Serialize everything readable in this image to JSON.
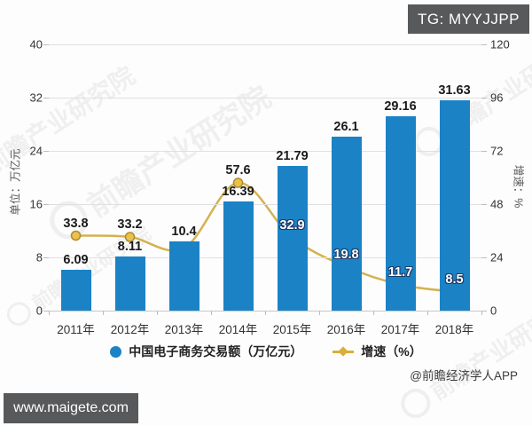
{
  "badges": {
    "tg": "TG: MYYJJPP",
    "site": "www.maigete.com"
  },
  "attribution": "@前瞻经济学人APP",
  "watermark": {
    "text": "前瞻产业研究院"
  },
  "chart_data": {
    "type": "bar",
    "subtype": "bar+line dual axis",
    "categories": [
      "2011年",
      "2012年",
      "2013年",
      "2014年",
      "2015年",
      "2016年",
      "2017年",
      "2018年"
    ],
    "series": [
      {
        "name": "中国电子商务交易额（万亿元）",
        "type": "bar",
        "axis": "left",
        "color": "#1b82c5",
        "values": [
          6.09,
          8.11,
          10.4,
          16.39,
          21.79,
          26.1,
          29.16,
          31.63
        ],
        "labels": [
          "6.09",
          "8.11",
          "10.4",
          "16.39",
          "21.79",
          "26.1",
          "29.16",
          "31.63"
        ]
      },
      {
        "name": "增速（%）",
        "type": "line",
        "axis": "right",
        "color": "#d2ae46",
        "marker_fill": "#ecc24b",
        "marker_stroke": "#ad8b32",
        "values": [
          33.8,
          33.2,
          28.2,
          57.6,
          32.9,
          19.8,
          11.7,
          8.5
        ],
        "labels": [
          "33.8",
          "33.2",
          "",
          "57.6",
          "32.9",
          "19.8",
          "11.7",
          "8.5"
        ],
        "label_styles": [
          "dark",
          "dark",
          "none",
          "dark",
          "light",
          "light",
          "light",
          "light"
        ]
      }
    ],
    "left_axis": {
      "title": "单位：万亿元",
      "ticks": [
        0,
        8,
        16,
        24,
        32,
        40
      ],
      "max": 40
    },
    "right_axis": {
      "title": "增速：%",
      "ticks": [
        0,
        24,
        48,
        72,
        96,
        120
      ],
      "max": 120
    },
    "legend": [
      {
        "label": "中国电子商务交易额（万亿元）",
        "marker": "circle",
        "color": "#1b82c5"
      },
      {
        "label": "增速（%）",
        "marker": "diamond-line",
        "color": "#d9af3c"
      }
    ],
    "grid": true,
    "legend_position": "bottom"
  }
}
